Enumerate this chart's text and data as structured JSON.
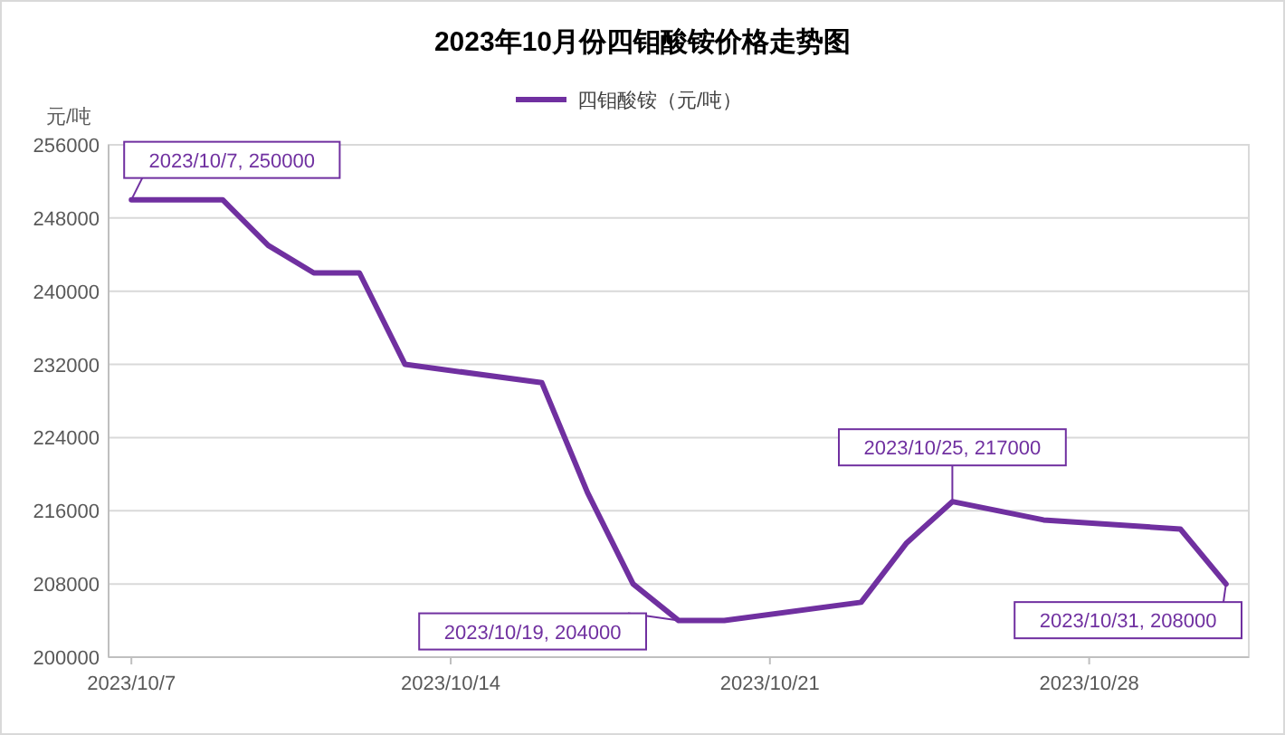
{
  "chart_data": {
    "type": "line",
    "title": "2023年10月份四钼酸铵价格走势图",
    "ylabel": "元/吨",
    "x": [
      "2023-10-07",
      "2023-10-09",
      "2023-10-10",
      "2023-10-11",
      "2023-10-12",
      "2023-10-13",
      "2023-10-16",
      "2023-10-17",
      "2023-10-18",
      "2023-10-19",
      "2023-10-20",
      "2023-10-23",
      "2023-10-24",
      "2023-10-25",
      "2023-10-27",
      "2023-10-30",
      "2023-10-31"
    ],
    "series": [
      {
        "name": "四钼酸铵（元/吨）",
        "color": "#7030a0",
        "values": [
          250000,
          250000,
          245000,
          242000,
          242000,
          232000,
          230000,
          218000,
          208000,
          204000,
          204000,
          206000,
          212500,
          217000,
          215000,
          214000,
          208000
        ]
      }
    ],
    "xlim": [
      "2023-10-06T12:00",
      "2023-10-31T12:00"
    ],
    "xticks": [
      {
        "value": "2023-10-07",
        "label": "2023/10/7"
      },
      {
        "value": "2023-10-14",
        "label": "2023/10/14"
      },
      {
        "value": "2023-10-21",
        "label": "2023/10/21"
      },
      {
        "value": "2023-10-28",
        "label": "2023/10/28"
      }
    ],
    "ylim": [
      200000,
      256000
    ],
    "yticks": [
      200000,
      208000,
      216000,
      224000,
      232000,
      240000,
      248000,
      256000
    ],
    "grid": "y",
    "legend": "top",
    "marker": "none",
    "line_style": "solid",
    "annotations": [
      {
        "text": "2023/10/7, 250000",
        "x": "2023-10-07",
        "y": 250000
      },
      {
        "text": "2023/10/19, 204000",
        "x": "2023-10-19",
        "y": 204000
      },
      {
        "text": "2023/10/25, 217000",
        "x": "2023-10-25",
        "y": 217000
      },
      {
        "text": "2023/10/31, 208000",
        "x": "2023-10-31",
        "y": 208000
      }
    ]
  }
}
